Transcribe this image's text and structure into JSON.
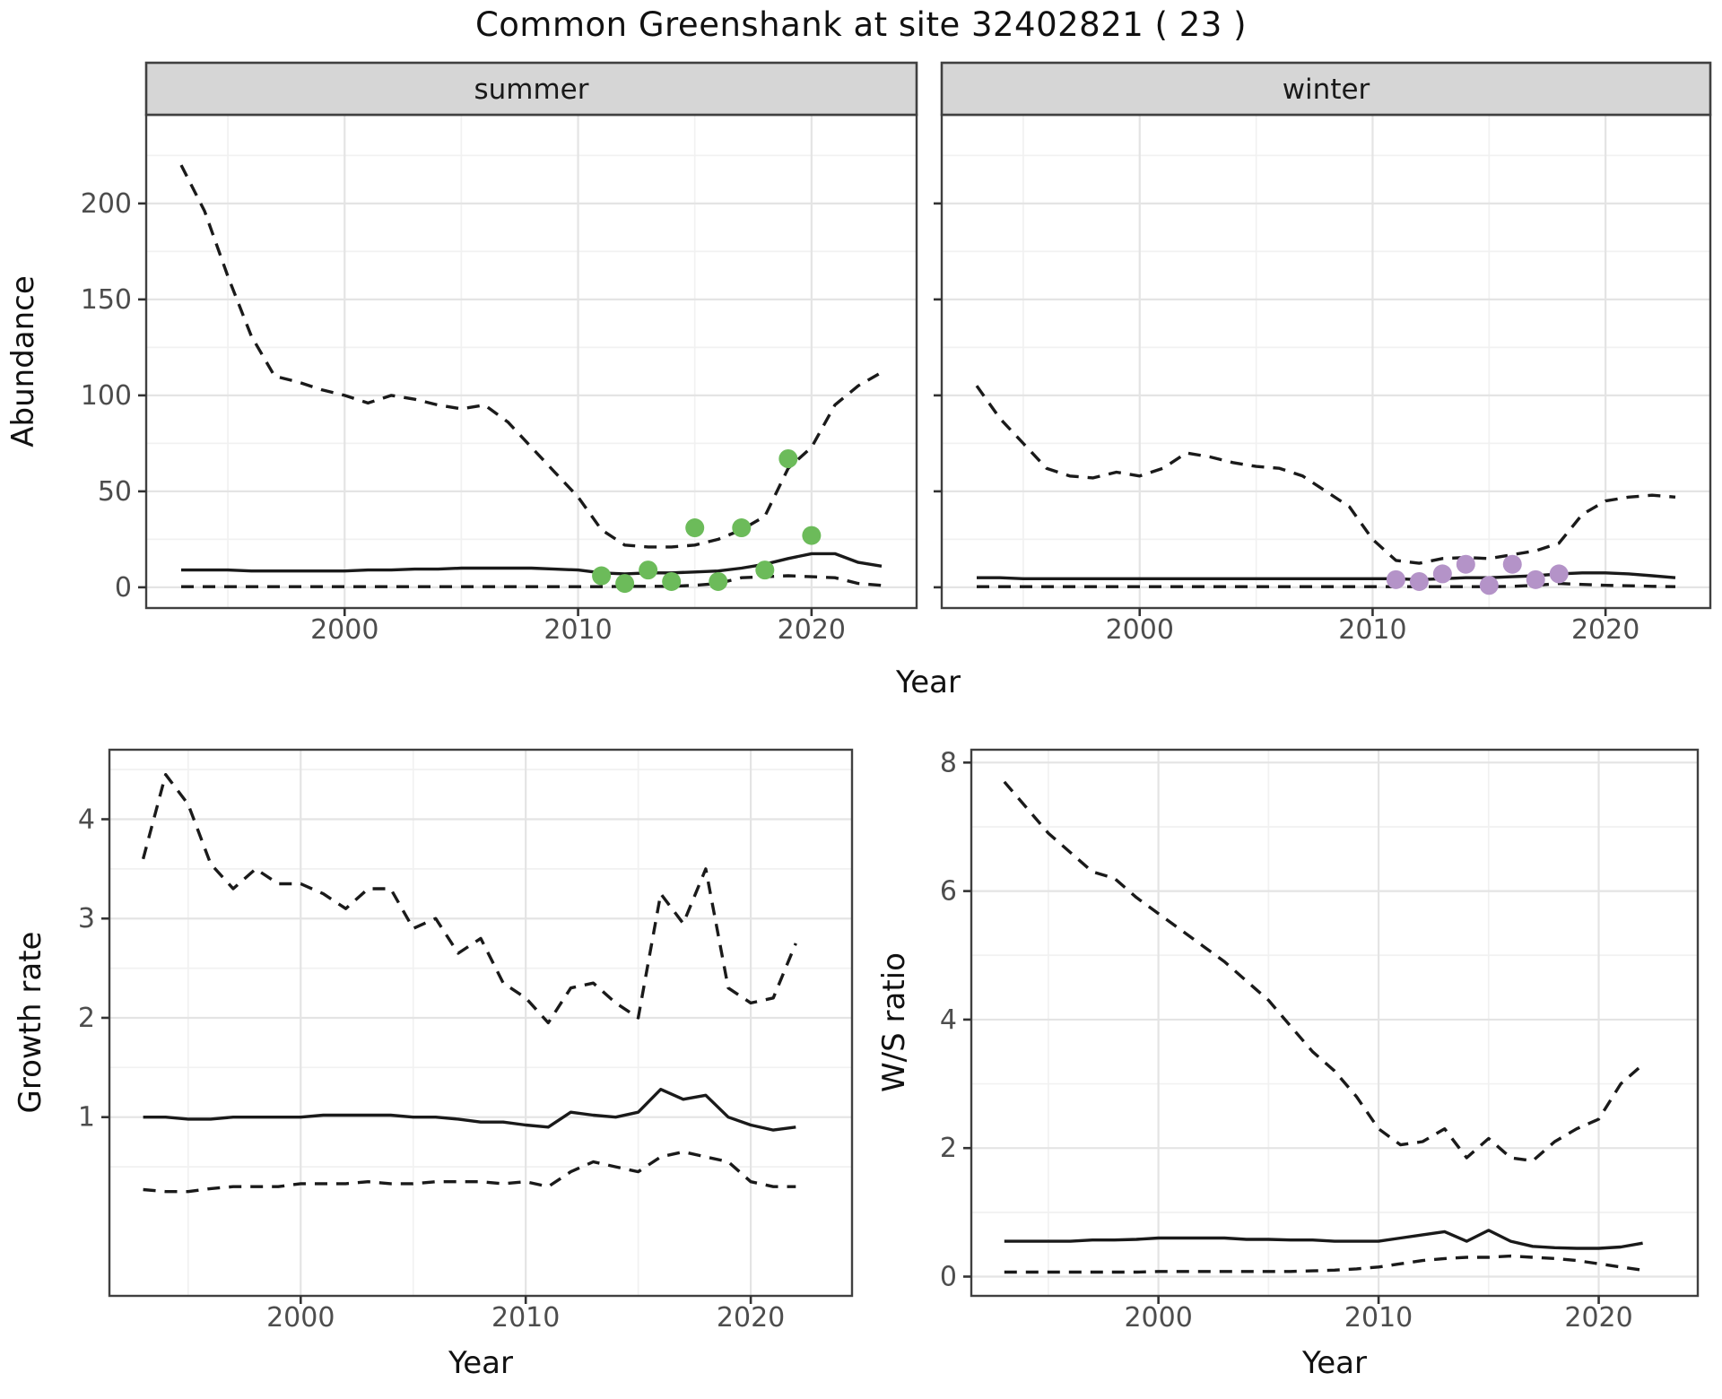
{
  "title": "Common Greenshank at site 32402821 ( 23 )",
  "colors": {
    "summer_points": "#6cbb5a",
    "winter_points": "#b493c8",
    "line": "#1a1a1a",
    "strip_bg": "#d6d6d6",
    "panel_border": "#404040",
    "grid_major": "#e4e4e4",
    "grid_minor": "#f1f1f1",
    "axis_text": "#4d4d4d",
    "tick_mark": "#333333"
  },
  "chart_data": [
    {
      "key": "abundance_summer",
      "type": "line",
      "facet_label": "summer",
      "xlabel": "Year",
      "ylabel": "Abundance",
      "xlim": [
        1991.5,
        2024.5
      ],
      "ylim": [
        -10.8,
        246.2
      ],
      "xticks": [
        2000,
        2010,
        2020
      ],
      "yticks": [
        0,
        50,
        100,
        150,
        200
      ],
      "x_minor": [
        1995,
        2005,
        2015
      ],
      "y_minor": [
        25,
        75,
        125,
        175,
        225
      ],
      "show_y_labels": true,
      "x": [
        1993,
        1994,
        1995,
        1996,
        1997,
        1998,
        1999,
        2000,
        2001,
        2002,
        2003,
        2004,
        2005,
        2006,
        2007,
        2008,
        2009,
        2010,
        2011,
        2012,
        2013,
        2014,
        2015,
        2016,
        2017,
        2018,
        2019,
        2020,
        2021,
        2022,
        2023
      ],
      "series": [
        {
          "name": "upper_ci",
          "style": "dashed",
          "values": [
            220,
            196,
            162,
            131,
            110,
            107,
            103,
            100,
            96,
            100,
            98,
            95,
            93,
            95,
            86,
            73,
            60,
            47,
            30,
            22,
            21,
            21,
            22,
            25,
            30,
            37,
            62,
            73,
            95,
            105,
            112
          ]
        },
        {
          "name": "median",
          "style": "solid",
          "values": [
            9,
            9,
            9,
            8.5,
            8.5,
            8.5,
            8.5,
            8.5,
            9,
            9,
            9.5,
            9.5,
            10,
            10,
            10,
            10,
            9.5,
            9,
            7.5,
            7,
            7.5,
            7.5,
            8,
            8.5,
            10,
            12,
            15,
            17.5,
            17.5,
            13,
            11
          ]
        },
        {
          "name": "lower_ci",
          "style": "dashed",
          "values": [
            0.3,
            0.3,
            0.3,
            0.3,
            0.3,
            0.3,
            0.3,
            0.3,
            0.3,
            0.3,
            0.3,
            0.3,
            0.3,
            0.3,
            0.3,
            0.3,
            0.3,
            0.3,
            0.3,
            0.5,
            0.5,
            0.5,
            1,
            2,
            5,
            5.5,
            6,
            5.5,
            5,
            2,
            1
          ]
        }
      ],
      "points": {
        "name": "observed_counts_summer",
        "color_key": "summer_points",
        "x": [
          2011,
          2012,
          2013,
          2014,
          2015,
          2016,
          2017,
          2018,
          2019,
          2020
        ],
        "y": [
          6,
          2,
          9,
          3,
          31,
          3,
          31,
          9,
          67,
          27
        ]
      }
    },
    {
      "key": "abundance_winter",
      "type": "line",
      "facet_label": "winter",
      "xlabel": "Year",
      "ylabel": "",
      "xlim": [
        1991.5,
        2024.5
      ],
      "ylim": [
        -10.8,
        246.2
      ],
      "xticks": [
        2000,
        2010,
        2020
      ],
      "yticks": [
        0,
        50,
        100,
        150,
        200
      ],
      "x_minor": [
        1995,
        2005,
        2015
      ],
      "y_minor": [
        25,
        75,
        125,
        175,
        225
      ],
      "show_y_labels": false,
      "x": [
        1993,
        1994,
        1995,
        1996,
        1997,
        1998,
        1999,
        2000,
        2001,
        2002,
        2003,
        2004,
        2005,
        2006,
        2007,
        2008,
        2009,
        2010,
        2011,
        2012,
        2013,
        2014,
        2015,
        2016,
        2017,
        2018,
        2019,
        2020,
        2021,
        2022,
        2023
      ],
      "series": [
        {
          "name": "upper_ci",
          "style": "dashed",
          "values": [
            105,
            88,
            75,
            62,
            58,
            57,
            60,
            58,
            62,
            70,
            68,
            65,
            63,
            62,
            58,
            50,
            42,
            25,
            14,
            12.5,
            15,
            15.5,
            15,
            17,
            19,
            23,
            38,
            45,
            47,
            48,
            47
          ]
        },
        {
          "name": "median",
          "style": "solid",
          "values": [
            5,
            5,
            4.5,
            4.5,
            4.5,
            4.5,
            4.5,
            4.5,
            4.5,
            4.5,
            4.5,
            4.5,
            4.5,
            4.5,
            4.5,
            4.5,
            4.5,
            4.5,
            4.5,
            4,
            4.5,
            5,
            5,
            5.5,
            6,
            7,
            7.5,
            7.5,
            7,
            6,
            5
          ]
        },
        {
          "name": "lower_ci",
          "style": "dashed",
          "values": [
            0.3,
            0.3,
            0.3,
            0.3,
            0.3,
            0.3,
            0.3,
            0.3,
            0.3,
            0.3,
            0.3,
            0.3,
            0.3,
            0.3,
            0.3,
            0.3,
            0.3,
            0.3,
            0.3,
            0.3,
            0.3,
            0.3,
            0.3,
            0.5,
            1,
            2,
            1.5,
            1,
            0.8,
            0.5,
            0.3
          ]
        }
      ],
      "points": {
        "name": "observed_counts_winter",
        "color_key": "winter_points",
        "x": [
          2011,
          2012,
          2013,
          2014,
          2015,
          2016,
          2017,
          2018
        ],
        "y": [
          4,
          3,
          7,
          12,
          1,
          12,
          4,
          7
        ]
      }
    },
    {
      "key": "growth_rate",
      "type": "line",
      "facet_label": "",
      "xlabel": "Year",
      "ylabel": "Growth rate",
      "xlim": [
        1991.5,
        2024.5
      ],
      "ylim": [
        -0.8,
        4.7
      ],
      "xticks": [
        2000,
        2010,
        2020
      ],
      "yticks": [
        1,
        2,
        3,
        4
      ],
      "x_minor": [
        1995,
        2005,
        2015
      ],
      "y_minor": [
        0.5,
        1.5,
        2.5,
        3.5,
        4.5
      ],
      "show_y_labels": true,
      "x": [
        1993,
        1994,
        1995,
        1996,
        1997,
        1998,
        1999,
        2000,
        2001,
        2002,
        2003,
        2004,
        2005,
        2006,
        2007,
        2008,
        2009,
        2010,
        2011,
        2012,
        2013,
        2014,
        2015,
        2016,
        2017,
        2018,
        2019,
        2020,
        2021,
        2022
      ],
      "series": [
        {
          "name": "upper_ci",
          "style": "dashed",
          "values": [
            3.6,
            4.45,
            4.15,
            3.55,
            3.3,
            3.5,
            3.35,
            3.35,
            3.25,
            3.1,
            3.3,
            3.3,
            2.9,
            3.0,
            2.65,
            2.8,
            2.35,
            2.2,
            1.95,
            2.3,
            2.35,
            2.15,
            2.0,
            3.25,
            2.95,
            3.5,
            2.3,
            2.15,
            2.2,
            2.75
          ]
        },
        {
          "name": "median",
          "style": "solid",
          "values": [
            1.0,
            1.0,
            0.98,
            0.98,
            1.0,
            1.0,
            1.0,
            1.0,
            1.02,
            1.02,
            1.02,
            1.02,
            1.0,
            1.0,
            0.98,
            0.95,
            0.95,
            0.92,
            0.9,
            1.05,
            1.02,
            1.0,
            1.05,
            1.28,
            1.18,
            1.22,
            1.0,
            0.92,
            0.87,
            0.9
          ]
        },
        {
          "name": "lower_ci",
          "style": "dashed",
          "values": [
            0.27,
            0.25,
            0.25,
            0.28,
            0.3,
            0.3,
            0.3,
            0.33,
            0.33,
            0.33,
            0.35,
            0.33,
            0.33,
            0.35,
            0.35,
            0.35,
            0.33,
            0.35,
            0.3,
            0.45,
            0.55,
            0.5,
            0.45,
            0.6,
            0.65,
            0.6,
            0.55,
            0.35,
            0.3,
            0.3
          ]
        }
      ],
      "points": null
    },
    {
      "key": "ws_ratio",
      "type": "line",
      "facet_label": "",
      "xlabel": "Year",
      "ylabel": "W/S ratio",
      "xlim": [
        1991.5,
        2024.5
      ],
      "ylim": [
        -0.3,
        8.2
      ],
      "xticks": [
        2000,
        2010,
        2020
      ],
      "yticks": [
        0,
        2,
        4,
        6,
        8
      ],
      "x_minor": [
        1995,
        2005,
        2015
      ],
      "y_minor": [
        1,
        3,
        5,
        7
      ],
      "show_y_labels": true,
      "x": [
        1993,
        1994,
        1995,
        1996,
        1997,
        1998,
        1999,
        2000,
        2001,
        2002,
        2003,
        2004,
        2005,
        2006,
        2007,
        2008,
        2009,
        2010,
        2011,
        2012,
        2013,
        2014,
        2015,
        2016,
        2017,
        2018,
        2019,
        2020,
        2021,
        2022
      ],
      "series": [
        {
          "name": "upper_ci",
          "style": "dashed",
          "values": [
            7.7,
            7.3,
            6.9,
            6.6,
            6.3,
            6.2,
            5.9,
            5.65,
            5.4,
            5.15,
            4.9,
            4.6,
            4.3,
            3.9,
            3.5,
            3.2,
            2.8,
            2.3,
            2.05,
            2.1,
            2.3,
            1.85,
            2.15,
            1.85,
            1.8,
            2.1,
            2.3,
            2.45,
            3.0,
            3.3
          ]
        },
        {
          "name": "median",
          "style": "solid",
          "values": [
            0.55,
            0.55,
            0.55,
            0.55,
            0.57,
            0.57,
            0.58,
            0.6,
            0.6,
            0.6,
            0.6,
            0.58,
            0.58,
            0.57,
            0.57,
            0.55,
            0.55,
            0.55,
            0.6,
            0.65,
            0.7,
            0.55,
            0.72,
            0.55,
            0.47,
            0.45,
            0.44,
            0.44,
            0.46,
            0.52
          ]
        },
        {
          "name": "lower_ci",
          "style": "dashed",
          "values": [
            0.07,
            0.07,
            0.07,
            0.07,
            0.07,
            0.07,
            0.07,
            0.08,
            0.08,
            0.08,
            0.08,
            0.08,
            0.08,
            0.08,
            0.09,
            0.1,
            0.12,
            0.15,
            0.2,
            0.25,
            0.28,
            0.3,
            0.3,
            0.32,
            0.3,
            0.28,
            0.25,
            0.2,
            0.15,
            0.1
          ]
        }
      ],
      "points": null
    }
  ]
}
